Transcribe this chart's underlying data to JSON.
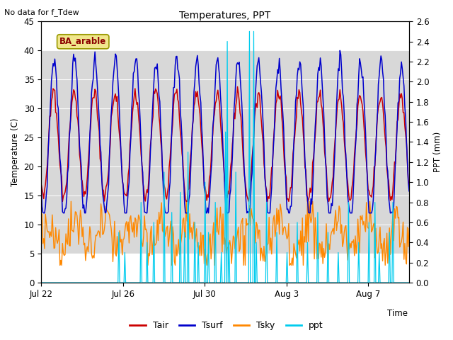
{
  "title": "Temperatures, PPT",
  "subtitle": "No data for f_Tdew",
  "station_label": "BA_arable",
  "xlabel": "Time",
  "ylabel_left": "Temperature (C)",
  "ylabel_right": "PPT (mm)",
  "ylim_left": [
    0,
    45
  ],
  "ylim_right": [
    0.0,
    2.6
  ],
  "yticks_left": [
    0,
    5,
    10,
    15,
    20,
    25,
    30,
    35,
    40,
    45
  ],
  "yticks_right": [
    0.0,
    0.2,
    0.4,
    0.6,
    0.8,
    1.0,
    1.2,
    1.4,
    1.6,
    1.8,
    2.0,
    2.2,
    2.4,
    2.6
  ],
  "xtick_labels": [
    "Jul 22",
    "Jul 26",
    "Jul 30",
    "Aug 3",
    "Aug 7"
  ],
  "colors": {
    "Tair": "#cc0000",
    "Tsurf": "#0000cc",
    "Tsky": "#ff8800",
    "ppt": "#00ccee"
  },
  "shade_band": [
    5,
    40
  ],
  "background_color": "#ffffff",
  "plot_bg_color": "#f0f0f0",
  "shade_color": "#e0e0e0"
}
